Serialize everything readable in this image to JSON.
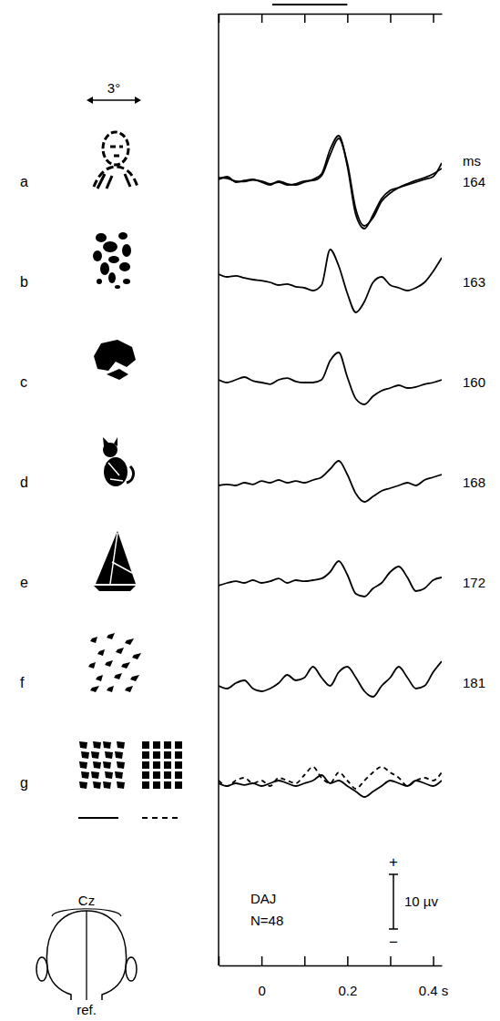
{
  "figure": {
    "angle_label": "3°",
    "latency_unit": "ms",
    "subject": "DAJ",
    "n_label": "N=48",
    "polarity_plus": "+",
    "polarity_minus": "−",
    "calibration": {
      "value": 10,
      "label": "10 µv"
    },
    "electrode": "Cz",
    "reference": "ref.",
    "xlim": [
      -0.1,
      0.42
    ],
    "xticks": [
      0,
      0.2,
      {
        "value": 0.4,
        "label": "0.4 s"
      }
    ],
    "xminor_ticks": [
      -0.1,
      0.1,
      0.3
    ],
    "stimulus": [
      0.025,
      0.2
    ]
  },
  "chart_data": [
    {
      "type": "line",
      "title": "a",
      "latency": 164,
      "x": [
        -0.1,
        -0.08,
        -0.06,
        -0.04,
        -0.02,
        0,
        0.02,
        0.04,
        0.06,
        0.08,
        0.1,
        0.12,
        0.14,
        0.16,
        0.18,
        0.2,
        0.22,
        0.24,
        0.26,
        0.28,
        0.3,
        0.32,
        0.34,
        0.36,
        0.38,
        0.4,
        0.42
      ],
      "xlim": [
        -0.1,
        0.42
      ],
      "ylim": [
        -9,
        9
      ],
      "series": [
        {
          "line_style": "solid",
          "values": [
            0.5,
            1,
            0,
            0.3,
            0.5,
            0,
            -0.5,
            0.2,
            -0.3,
            -0.5,
            0,
            0.5,
            1.5,
            6,
            8.5,
            3,
            -6,
            -8.5,
            -6,
            -3,
            -1.5,
            -1,
            -0.5,
            0,
            0.5,
            1,
            3.5
          ]
        },
        {
          "line_style": "solid",
          "values": [
            0.8,
            0.7,
            0.2,
            0.1,
            0.4,
            0.2,
            -0.3,
            0,
            -0.5,
            -0.3,
            0.2,
            0.3,
            1.2,
            5,
            8,
            3.5,
            -5,
            -8,
            -6.5,
            -3.5,
            -2,
            -1,
            -0.3,
            0.3,
            0.8,
            1.5,
            2.5
          ]
        }
      ]
    },
    {
      "type": "line",
      "title": "b",
      "latency": 163,
      "x": [
        -0.1,
        -0.08,
        -0.06,
        -0.04,
        -0.02,
        0,
        0.02,
        0.04,
        0.06,
        0.08,
        0.1,
        0.12,
        0.14,
        0.16,
        0.18,
        0.2,
        0.22,
        0.24,
        0.26,
        0.28,
        0.3,
        0.32,
        0.34,
        0.36,
        0.38,
        0.4,
        0.42
      ],
      "xlim": [
        -0.1,
        0.42
      ],
      "ylim": [
        -9,
        9
      ],
      "series": [
        {
          "line_style": "solid",
          "values": [
            1.5,
            1,
            1.2,
            0.8,
            0.5,
            0.3,
            0,
            -0.5,
            -0.3,
            -0.8,
            -1,
            -1.5,
            -0.5,
            6,
            3,
            -2,
            -5.5,
            -3.5,
            0,
            1,
            -0.5,
            -1,
            -1.5,
            -1,
            0,
            2,
            4.5
          ]
        }
      ]
    },
    {
      "type": "line",
      "title": "c",
      "latency": 160,
      "x": [
        -0.1,
        -0.08,
        -0.06,
        -0.04,
        -0.02,
        0,
        0.02,
        0.04,
        0.06,
        0.08,
        0.1,
        0.12,
        0.14,
        0.16,
        0.18,
        0.2,
        0.22,
        0.24,
        0.26,
        0.28,
        0.3,
        0.32,
        0.34,
        0.36,
        0.38,
        0.4,
        0.42
      ],
      "xlim": [
        -0.1,
        0.42
      ],
      "ylim": [
        -9,
        9
      ],
      "series": [
        {
          "line_style": "solid",
          "values": [
            0.5,
            0,
            0.5,
            1,
            0.3,
            0,
            -0.3,
            0.5,
            0.8,
            0.2,
            0,
            0,
            0.5,
            4,
            5.5,
            1,
            -3,
            -4,
            -2.5,
            -1.5,
            -1,
            -0.5,
            -1,
            -0.8,
            -0.3,
            0,
            0.5
          ]
        }
      ]
    },
    {
      "type": "line",
      "title": "d",
      "latency": 168,
      "x": [
        -0.1,
        -0.08,
        -0.06,
        -0.04,
        -0.02,
        0,
        0.02,
        0.04,
        0.06,
        0.08,
        0.1,
        0.12,
        0.14,
        0.16,
        0.18,
        0.2,
        0.22,
        0.24,
        0.26,
        0.28,
        0.3,
        0.32,
        0.34,
        0.36,
        0.38,
        0.4,
        0.42
      ],
      "xlim": [
        -0.1,
        0.42
      ],
      "ylim": [
        -9,
        9
      ],
      "series": [
        {
          "line_style": "solid",
          "values": [
            -0.5,
            -0.3,
            -0.5,
            0,
            -0.3,
            0.3,
            0,
            0.5,
            0,
            0.3,
            0,
            0.5,
            1,
            2.5,
            4,
            1.5,
            -2,
            -3.5,
            -2.5,
            -1.5,
            -1,
            -0.5,
            0,
            -0.5,
            0.5,
            1,
            1.5
          ]
        }
      ]
    },
    {
      "type": "line",
      "title": "e",
      "latency": 172,
      "x": [
        -0.1,
        -0.08,
        -0.06,
        -0.04,
        -0.02,
        0,
        0.02,
        0.04,
        0.06,
        0.08,
        0.1,
        0.12,
        0.14,
        0.16,
        0.18,
        0.2,
        0.22,
        0.24,
        0.26,
        0.28,
        0.3,
        0.32,
        0.34,
        0.36,
        0.38,
        0.4,
        0.42
      ],
      "xlim": [
        -0.1,
        0.42
      ],
      "ylim": [
        -9,
        9
      ],
      "series": [
        {
          "line_style": "solid",
          "values": [
            -0.5,
            0,
            0.3,
            0,
            0.5,
            0,
            0.3,
            0.8,
            0,
            0.5,
            0.3,
            0.5,
            0.8,
            2,
            4,
            1.5,
            -2,
            -2.5,
            -1,
            0,
            2,
            3,
            1,
            -1.5,
            -1,
            0.5,
            1
          ]
        }
      ]
    },
    {
      "type": "line",
      "title": "f",
      "latency": 181,
      "x": [
        -0.1,
        -0.08,
        -0.06,
        -0.04,
        -0.02,
        0,
        0.02,
        0.04,
        0.06,
        0.08,
        0.1,
        0.12,
        0.14,
        0.16,
        0.18,
        0.2,
        0.22,
        0.24,
        0.26,
        0.28,
        0.3,
        0.32,
        0.34,
        0.36,
        0.38,
        0.4,
        0.42
      ],
      "xlim": [
        -0.1,
        0.42
      ],
      "ylim": [
        -9,
        9
      ],
      "series": [
        {
          "line_style": "solid",
          "values": [
            -0.5,
            -1,
            0,
            0.5,
            -1,
            -1.5,
            -1,
            0,
            1.5,
            0.5,
            1,
            3,
            1,
            -0.5,
            2,
            3,
            1,
            -1.5,
            -2.5,
            -0.5,
            1,
            3,
            1,
            -1,
            -0.5,
            2,
            4
          ]
        }
      ]
    },
    {
      "type": "line",
      "title": "g",
      "x": [
        -0.1,
        -0.08,
        -0.06,
        -0.04,
        -0.02,
        0,
        0.02,
        0.04,
        0.06,
        0.08,
        0.1,
        0.12,
        0.14,
        0.16,
        0.18,
        0.2,
        0.22,
        0.24,
        0.26,
        0.28,
        0.3,
        0.32,
        0.34,
        0.36,
        0.38,
        0.4,
        0.42
      ],
      "xlim": [
        -0.1,
        0.42
      ],
      "ylim": [
        -9,
        9
      ],
      "series": [
        {
          "line_style": "solid",
          "values": [
            0,
            -0.5,
            0,
            -0.3,
            0,
            -0.5,
            0,
            0.5,
            0,
            -0.5,
            0,
            0.5,
            1.5,
            0,
            0.5,
            -0.5,
            -1.5,
            -2.5,
            -1.5,
            -0.5,
            0.5,
            0,
            -0.5,
            0.5,
            0,
            -0.5,
            0.5
          ]
        },
        {
          "line_style": "dashed",
          "values": [
            0.5,
            -0.5,
            0.5,
            1,
            0,
            0.5,
            -0.5,
            1,
            0.5,
            0,
            1.5,
            3,
            1,
            0,
            2,
            0.5,
            -1,
            0.5,
            2,
            3,
            2,
            1,
            -0.5,
            0.5,
            1,
            0.5,
            2
          ]
        }
      ]
    }
  ]
}
